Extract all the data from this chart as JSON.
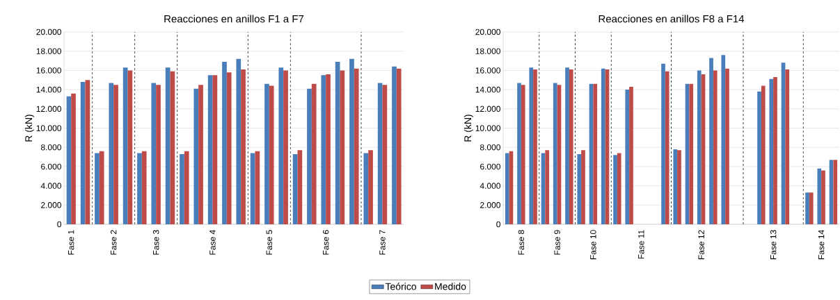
{
  "chart_data": [
    {
      "type": "bar",
      "title": "Reacciones en anillos F1 a F7",
      "ylabel": "R (kN)",
      "categories": [
        "Fase 1",
        null,
        null,
        "Fase 2",
        null,
        null,
        "Fase 3",
        null,
        null,
        null,
        "Fase 4",
        null,
        null,
        null,
        "Fase 5",
        null,
        null,
        null,
        "Fase 6",
        null,
        null,
        null,
        "Fase 7",
        null
      ],
      "series": [
        {
          "name": "Teórico",
          "color": "#4a7ebb",
          "values": [
            13300,
            14800,
            7400,
            14700,
            16300,
            7400,
            14700,
            16300,
            7300,
            14100,
            15500,
            16900,
            17200,
            7400,
            14600,
            16300,
            7300,
            14100,
            15500,
            16900,
            17200,
            7400,
            14700,
            16400
          ]
        },
        {
          "name": "Medido",
          "color": "#be4b48",
          "values": [
            13600,
            15000,
            7600,
            14500,
            16000,
            7600,
            14500,
            15900,
            7600,
            14500,
            15500,
            15800,
            16100,
            7600,
            14400,
            16000,
            7700,
            14600,
            15600,
            16000,
            16200,
            7700,
            14500,
            16200
          ]
        }
      ],
      "ylim": [
        0,
        20000
      ],
      "yticks": [
        0,
        {
          "value": 2000,
          "label": "2.000"
        },
        {
          "value": 4000,
          "label": "4.000"
        },
        {
          "value": 6000,
          "label": "6.000"
        },
        {
          "value": 8000,
          "label": "8.000"
        },
        {
          "value": 10000,
          "label": "10.000"
        },
        {
          "value": 12000,
          "label": "12.000"
        },
        {
          "value": 14000,
          "label": "14.000"
        },
        {
          "value": 16000,
          "label": "16.000"
        },
        {
          "value": 18000,
          "label": "18.000"
        },
        {
          "value": 20000,
          "label": "20.000"
        }
      ],
      "grid": "y",
      "legend": "bottom"
    },
    {
      "type": "bar",
      "title": "Reacciones en anillos F8 a F14",
      "ylabel": "R (kN)",
      "categories": [
        null,
        "Fase 8",
        null,
        null,
        "Fase 9",
        null,
        null,
        "Fase 10",
        null,
        null,
        null,
        "Fase 11",
        null,
        null,
        null,
        null,
        "Fase 12",
        null,
        null,
        null,
        null,
        null,
        "Fase 13",
        null,
        null,
        null,
        "Fase 14",
        null
      ],
      "series": [
        {
          "color": "#4a7ebb",
          "values": [
            7400,
            14700,
            16300,
            7400,
            14700,
            16300,
            7300,
            14600,
            16200,
            7200,
            14000,
            null,
            null,
            16700,
            7800,
            14600,
            16000,
            17300,
            17600,
            null,
            null,
            13800,
            15100,
            16800,
            null,
            3300,
            5800,
            6700
          ]
        },
        {
          "color": "#be4b48",
          "values": [
            7600,
            14500,
            16100,
            7700,
            14500,
            16100,
            7700,
            14600,
            16100,
            7400,
            14300,
            null,
            null,
            15900,
            7700,
            14600,
            15600,
            16000,
            16200,
            null,
            null,
            14400,
            15300,
            16100,
            null,
            3300,
            5600,
            6700
          ]
        }
      ],
      "ylim": [
        0,
        20000
      ],
      "yticks": [
        0,
        {
          "value": 2000,
          "label": "2.000"
        },
        {
          "value": 4000,
          "label": "4.000"
        },
        {
          "value": 6000,
          "label": "6.000"
        },
        {
          "value": 8000,
          "label": "8.000"
        },
        {
          "value": 10000,
          "label": "10.000"
        },
        {
          "value": 12000,
          "label": "12.000"
        },
        {
          "value": 14000,
          "label": "14.000"
        },
        {
          "value": 16000,
          "label": "16.000"
        },
        {
          "value": 18000,
          "label": "18.000"
        },
        {
          "value": 20000,
          "label": "20.000"
        }
      ],
      "grid": "y"
    }
  ]
}
